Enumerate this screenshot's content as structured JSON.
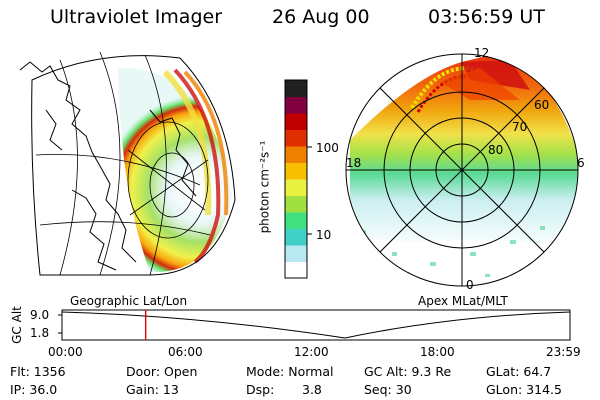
{
  "header": {
    "instrument": "Ultraviolet Imager",
    "date": "26 Aug 00",
    "time": "03:56:59 UT"
  },
  "left_map": {
    "caption": "Geographic Lat/Lon"
  },
  "right_map": {
    "caption": "Apex MLat/MLT",
    "mlt_labels": [
      "12",
      "18",
      "6",
      "0"
    ],
    "lat_labels": [
      "60",
      "70",
      "80"
    ]
  },
  "colorbar": {
    "label": "photon cm⁻²s⁻¹",
    "ticks": [
      "100",
      "10"
    ],
    "colors": [
      "#ffffff",
      "#b8e8f0",
      "#40d0c8",
      "#40e080",
      "#a0e040",
      "#e8f040",
      "#f8c000",
      "#f08000",
      "#e03000",
      "#c00000",
      "#800040",
      "#202020"
    ]
  },
  "timeline": {
    "ylabel": "GC Alt",
    "y_ticks": [
      "9.0",
      "1.8"
    ],
    "x_ticks": [
      "00:00",
      "06:00",
      "12:00",
      "18:00",
      "23:59"
    ],
    "marker_time": "03:56:59",
    "marker_color": "#e00000"
  },
  "info": {
    "flt": "Flt: 1356",
    "ip": "IP: 36.0",
    "door": "Door: Open",
    "gain": "Gain: 13",
    "mode": "Mode: Normal",
    "dsp_label": "Dsp:",
    "dsp_value": "3.8",
    "gc_alt": "GC Alt: 9.3 Re",
    "seq": "Seq: 30",
    "glat": "GLat:  64.7",
    "glon": "GLon: 314.5"
  }
}
